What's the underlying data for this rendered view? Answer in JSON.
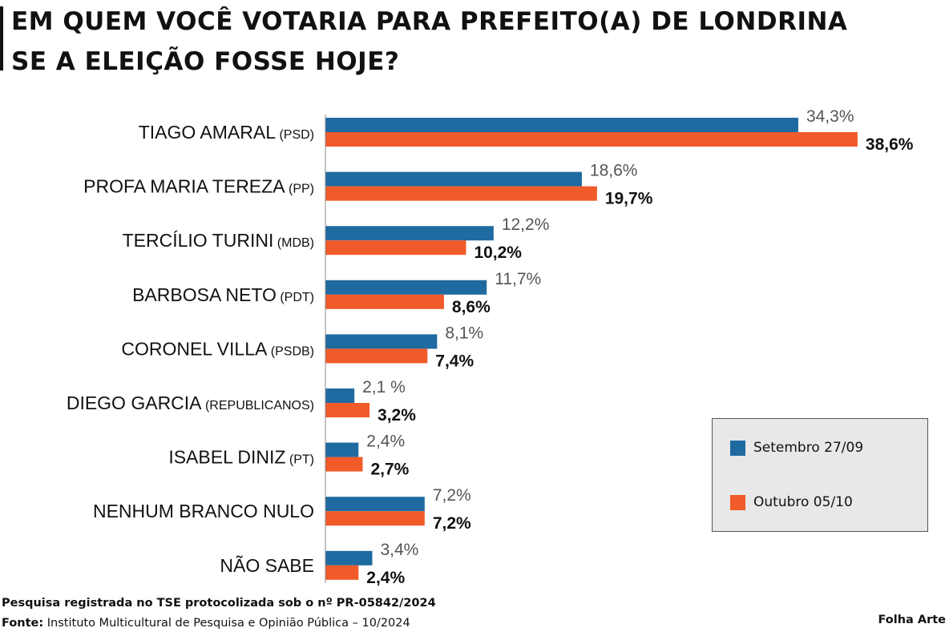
{
  "title": {
    "line1": "EM QUEM VOCÊ VOTARIA PARA PREFEITO(A) DE LONDRINA",
    "line2": "SE A ELEIÇÃO FOSSE HOJE?"
  },
  "colors": {
    "setembro": "#1f6aa0",
    "outubro": "#f15a29"
  },
  "legend": {
    "setembro": "Setembro 27/09",
    "outubro": "Outubro 05/10"
  },
  "chart_data": {
    "type": "bar",
    "orientation": "horizontal",
    "title": "EM QUEM VOCÊ VOTARIA PARA PREFEITO(A) DE LONDRINA SE A ELEIÇÃO FOSSE HOJE?",
    "categories": [
      {
        "name": "TIAGO AMARAL",
        "party": "(PSD)"
      },
      {
        "name": "PROFA MARIA TEREZA",
        "party": "(PP)"
      },
      {
        "name": "TERCÍLIO TURINI",
        "party": "(MDB)"
      },
      {
        "name": "BARBOSA NETO",
        "party": "(PDT)"
      },
      {
        "name": "CORONEL VILLA",
        "party": "(PSDB)"
      },
      {
        "name": "DIEGO GARCIA",
        "party": "(REPUBLICANOS)"
      },
      {
        "name": "ISABEL DINIZ",
        "party": "(PT)"
      },
      {
        "name": "NENHUM BRANCO NULO",
        "party": ""
      },
      {
        "name": "NÃO SABE",
        "party": ""
      }
    ],
    "series": [
      {
        "name": "Setembro 27/09",
        "values": [
          34.3,
          18.6,
          12.2,
          11.7,
          8.1,
          2.1,
          2.4,
          7.2,
          3.4
        ],
        "labels": [
          "34,3%",
          "18,6%",
          "12,2%",
          "11,7%",
          "8,1%",
          "2,1 %",
          "2,4%",
          "7,2%",
          "3,4%"
        ]
      },
      {
        "name": "Outubro 05/10",
        "values": [
          38.6,
          19.7,
          10.2,
          8.6,
          7.4,
          3.2,
          2.7,
          7.2,
          2.4
        ],
        "labels": [
          "38,6%",
          "19,7%",
          "10,2%",
          "8,6%",
          "7,4%",
          "3,2%",
          "2,7%",
          "7,2%",
          "2,4%"
        ]
      }
    ],
    "xlim": [
      0,
      38.6
    ],
    "grid": false,
    "legend_position": "bottom-right"
  },
  "footer": {
    "line1": "Pesquisa registrada no TSE protocolizada sob o nº PR-05842/2024",
    "source_label": "Fonte:",
    "source_text": " Instituto Multicultural de Pesquisa e Opinião Pública – 10/2024",
    "credit": "Folha Arte"
  }
}
